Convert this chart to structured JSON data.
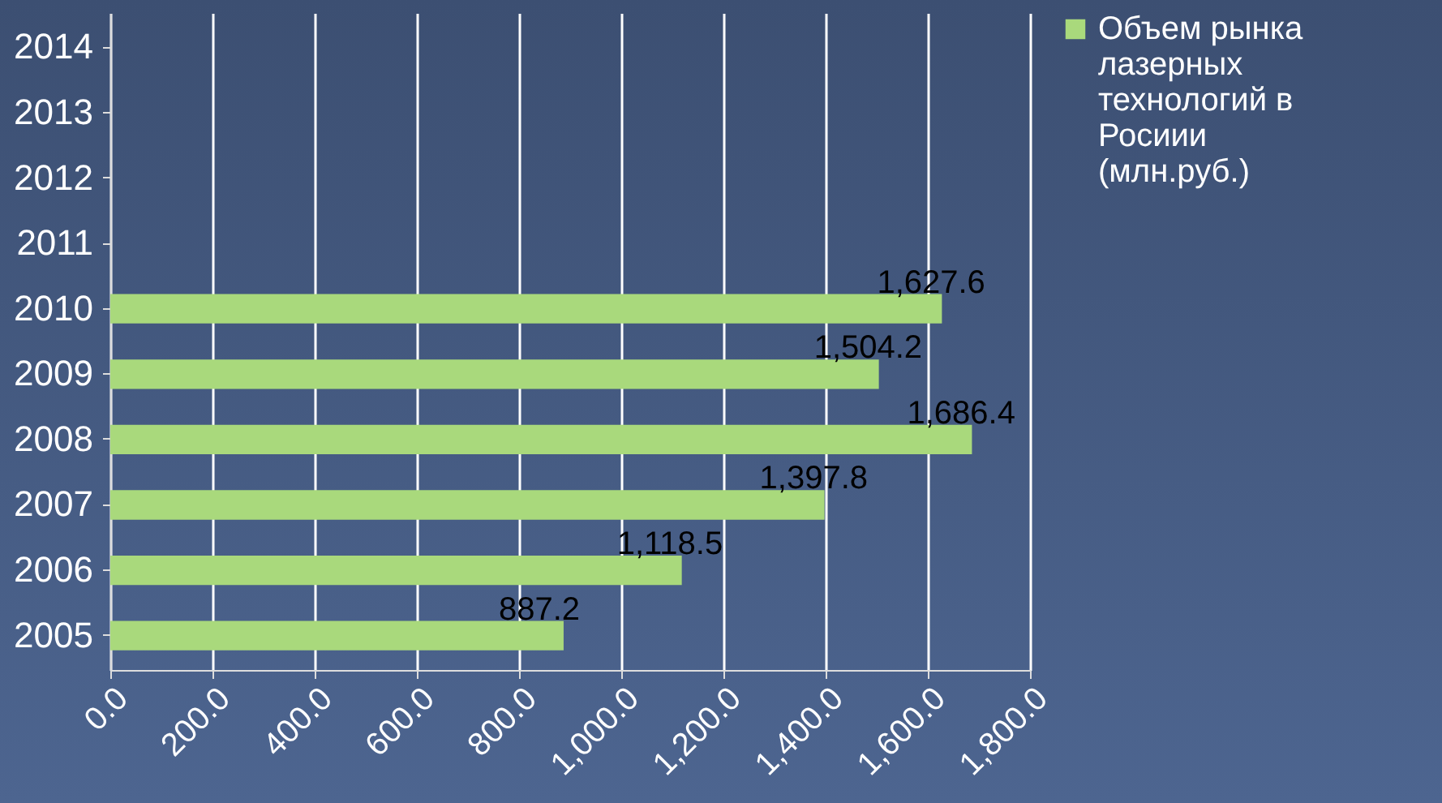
{
  "chart_data": {
    "type": "bar",
    "orientation": "horizontal",
    "categories": [
      "2014",
      "2013",
      "2012",
      "2011",
      "2010",
      "2009",
      "2008",
      "2007",
      "2006",
      "2005"
    ],
    "series": [
      {
        "name": "Объем рынка лазерных технологий в Росиии (млн.руб.)",
        "color": "#a9d97c",
        "values": [
          null,
          null,
          null,
          null,
          1627.6,
          1504.2,
          1686.4,
          1397.8,
          1118.5,
          887.2
        ]
      }
    ],
    "value_labels": [
      null,
      null,
      null,
      null,
      "1,627.6",
      "1,504.2",
      "1,686.4",
      "1,397.8",
      "1,118.5",
      "887.2"
    ],
    "xlim": [
      0,
      1800
    ],
    "xticks": [
      {
        "value": 0,
        "label": "0.0"
      },
      {
        "value": 200,
        "label": "200.0"
      },
      {
        "value": 400,
        "label": "400.0"
      },
      {
        "value": 600,
        "label": "600.0"
      },
      {
        "value": 800,
        "label": "800.0"
      },
      {
        "value": 1000,
        "label": "1,000.0"
      },
      {
        "value": 1200,
        "label": "1,200.0"
      },
      {
        "value": 1400,
        "label": "1,400.0"
      },
      {
        "value": 1600,
        "label": "1,600.0"
      },
      {
        "value": 1800,
        "label": "1,800.0"
      }
    ],
    "grid": "x",
    "legend": "right"
  }
}
